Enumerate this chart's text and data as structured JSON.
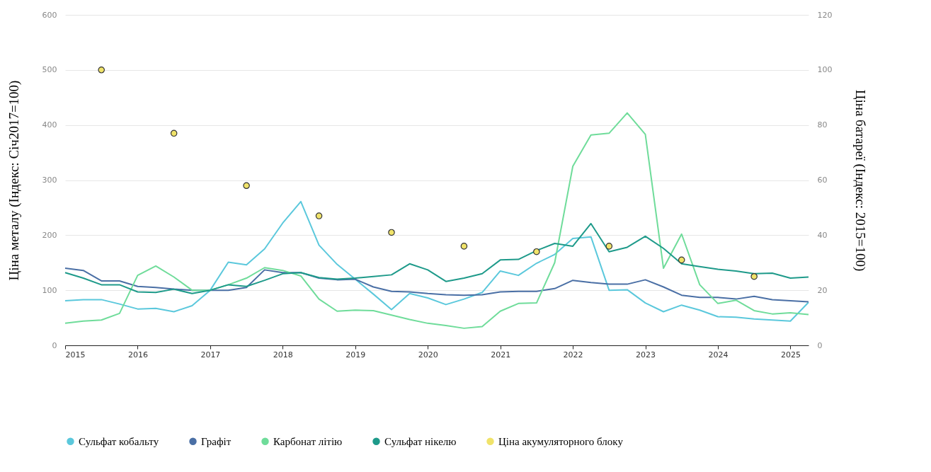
{
  "chart_data": {
    "type": "line",
    "ylabel": "Ціна металу (Індекс: Січ2017=100)",
    "y2label": "Ціна батареї (Індекс: 2015=100)",
    "x": [
      2015,
      2015.25,
      2015.5,
      2015.75,
      2016,
      2016.25,
      2016.5,
      2016.75,
      2017,
      2017.25,
      2017.5,
      2017.75,
      2018,
      2018.25,
      2018.5,
      2018.75,
      2019,
      2019.25,
      2019.5,
      2019.75,
      2020,
      2020.25,
      2020.5,
      2020.75,
      2021,
      2021.25,
      2021.5,
      2021.75,
      2022,
      2022.25,
      2022.5,
      2022.75,
      2023,
      2023.25,
      2023.5,
      2023.75,
      2024,
      2024.25,
      2024.5,
      2024.75,
      2025,
      2025.25
    ],
    "series": [
      {
        "name": "Сульфат кобальту",
        "color": "#5bc8dc",
        "values": [
          81,
          83,
          83,
          75,
          66,
          67,
          61,
          72,
          100,
          151,
          146,
          175,
          222,
          261,
          182,
          147,
          120,
          93,
          65,
          94,
          86,
          74,
          84,
          96,
          135,
          127,
          149,
          165,
          194,
          197,
          100,
          101,
          77,
          61,
          73,
          64,
          52,
          51,
          48,
          46,
          44,
          78
        ]
      },
      {
        "name": "Графіт",
        "color": "#4a6fa5",
        "values": [
          140,
          136,
          117,
          117,
          107,
          105,
          102,
          100,
          100,
          100,
          105,
          137,
          132,
          132,
          122,
          119,
          120,
          106,
          98,
          97,
          94,
          92,
          91,
          92,
          97,
          98,
          98,
          103,
          118,
          114,
          111,
          111,
          119,
          106,
          91,
          87,
          87,
          84,
          89,
          83,
          81,
          79
        ]
      },
      {
        "name": "Карбонат літію",
        "color": "#6fdc9a",
        "values": [
          40,
          44,
          46,
          58,
          127,
          144,
          124,
          100,
          100,
          110,
          122,
          141,
          136,
          126,
          84,
          62,
          64,
          63,
          55,
          47,
          40,
          36,
          31,
          34,
          62,
          76,
          77,
          150,
          325,
          382,
          385,
          422,
          383,
          140,
          202,
          110,
          76,
          82,
          63,
          57,
          59,
          56
        ]
      },
      {
        "name": "Сульфат нікелю",
        "color": "#1e9a8a",
        "values": [
          132,
          122,
          110,
          110,
          97,
          96,
          102,
          94,
          100,
          110,
          107,
          118,
          130,
          132,
          123,
          120,
          122,
          125,
          128,
          148,
          137,
          116,
          122,
          130,
          155,
          156,
          172,
          185,
          180,
          221,
          170,
          178,
          198,
          176,
          148,
          143,
          138,
          135,
          130,
          131,
          122,
          124
        ]
      },
      {
        "name": "Ціна акумуляторного блоку",
        "type": "scatter",
        "axis": "y2",
        "color": "#f0e36a",
        "x": [
          2015.5,
          2016.5,
          2017.5,
          2018.5,
          2019.5,
          2020.5,
          2021.5,
          2022.5,
          2023.5,
          2024.5
        ],
        "values": [
          100,
          77,
          58,
          47,
          41,
          36,
          34,
          36,
          31,
          25
        ]
      }
    ],
    "xlim": [
      2015,
      2025.25
    ],
    "xticks": [
      2015,
      2016,
      2017,
      2018,
      2019,
      2020,
      2021,
      2022,
      2023,
      2024,
      2025
    ],
    "ylim": [
      0,
      600
    ],
    "yticks": [
      0,
      100,
      200,
      300,
      400,
      500,
      600
    ],
    "y2lim": [
      0,
      120
    ],
    "y2ticks": [
      0,
      20,
      40,
      60,
      80,
      100,
      120
    ],
    "grid": "y",
    "legend": "bottom"
  }
}
